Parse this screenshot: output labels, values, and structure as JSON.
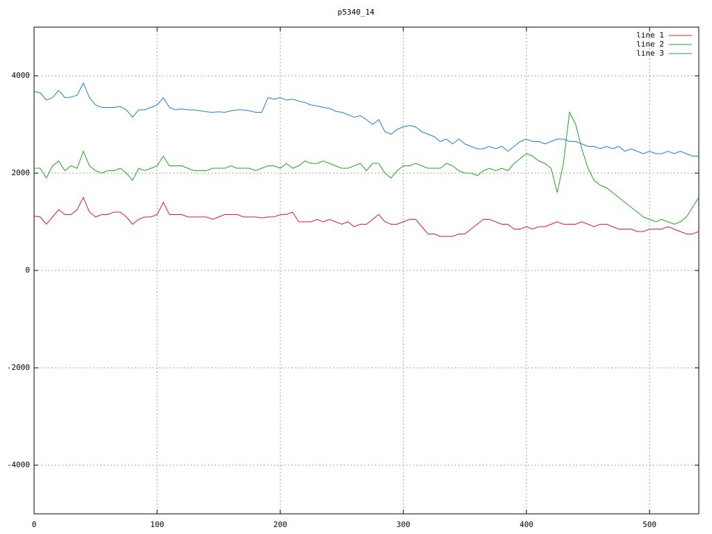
{
  "chart_data": {
    "type": "line",
    "title": "p5340_14",
    "x": [
      0,
      5,
      10,
      15,
      20,
      25,
      30,
      35,
      40,
      45,
      50,
      55,
      60,
      65,
      70,
      75,
      80,
      85,
      90,
      95,
      100,
      105,
      110,
      115,
      120,
      125,
      130,
      135,
      140,
      145,
      150,
      155,
      160,
      165,
      170,
      175,
      180,
      185,
      190,
      195,
      200,
      205,
      210,
      215,
      220,
      225,
      230,
      235,
      240,
      245,
      250,
      255,
      260,
      265,
      270,
      275,
      280,
      285,
      290,
      295,
      300,
      305,
      310,
      315,
      320,
      325,
      330,
      335,
      340,
      345,
      350,
      355,
      360,
      365,
      370,
      375,
      380,
      385,
      390,
      395,
      400,
      405,
      410,
      415,
      420,
      425,
      430,
      435,
      440,
      445,
      450,
      455,
      460,
      465,
      470,
      475,
      480,
      485,
      490,
      495,
      500,
      505,
      510,
      515,
      520,
      525,
      530,
      535,
      540
    ],
    "series": [
      {
        "name": "line 1",
        "color": "#e41a1c",
        "values": [
          1120,
          1100,
          950,
          1100,
          1250,
          1150,
          1150,
          1250,
          1500,
          1200,
          1100,
          1150,
          1150,
          1200,
          1200,
          1100,
          950,
          1050,
          1100,
          1100,
          1150,
          1400,
          1150,
          1150,
          1150,
          1100,
          1100,
          1100,
          1100,
          1050,
          1100,
          1150,
          1150,
          1150,
          1100,
          1100,
          1100,
          1080,
          1100,
          1100,
          1150,
          1150,
          1200,
          1000,
          1000,
          1000,
          1050,
          1000,
          1050,
          1000,
          950,
          1000,
          900,
          950,
          950,
          1050,
          1150,
          1000,
          950,
          950,
          1000,
          1050,
          1050,
          900,
          750,
          750,
          700,
          700,
          700,
          750,
          750,
          850,
          950,
          1050,
          1050,
          1000,
          950,
          950,
          850,
          850,
          900,
          850,
          900,
          900,
          950,
          1000,
          950,
          950,
          950,
          1000,
          950,
          900,
          950,
          950,
          900,
          850,
          850,
          850,
          800,
          800,
          850,
          850,
          850,
          900,
          850,
          800,
          750,
          750,
          800
        ]
      },
      {
        "name": "line 2",
        "color": "#1ca81c",
        "values": [
          2100,
          2100,
          1900,
          2150,
          2250,
          2050,
          2150,
          2100,
          2450,
          2150,
          2050,
          2000,
          2050,
          2050,
          2100,
          2000,
          1850,
          2100,
          2050,
          2100,
          2150,
          2350,
          2150,
          2150,
          2150,
          2100,
          2050,
          2050,
          2050,
          2100,
          2100,
          2100,
          2150,
          2100,
          2100,
          2100,
          2050,
          2100,
          2150,
          2150,
          2100,
          2200,
          2100,
          2150,
          2250,
          2200,
          2200,
          2250,
          2200,
          2150,
          2100,
          2100,
          2150,
          2200,
          2050,
          2200,
          2200,
          2000,
          1900,
          2050,
          2150,
          2150,
          2200,
          2150,
          2100,
          2100,
          2100,
          2200,
          2150,
          2050,
          2000,
          2000,
          1950,
          2050,
          2100,
          2050,
          2100,
          2050,
          2200,
          2300,
          2400,
          2350,
          2250,
          2200,
          2100,
          1600,
          2200,
          3250,
          3000,
          2500,
          2100,
          1850,
          1750,
          1700,
          1600,
          1500,
          1400,
          1300,
          1200,
          1100,
          1050,
          1000,
          1050,
          1000,
          950,
          1000,
          1100,
          1300,
          1500
        ]
      },
      {
        "name": "line 3",
        "color": "#1a7fd4",
        "values": [
          3680,
          3650,
          3500,
          3550,
          3700,
          3550,
          3560,
          3600,
          3850,
          3550,
          3400,
          3350,
          3350,
          3350,
          3370,
          3300,
          3150,
          3300,
          3300,
          3350,
          3400,
          3550,
          3350,
          3300,
          3320,
          3300,
          3300,
          3280,
          3260,
          3250,
          3260,
          3250,
          3280,
          3300,
          3300,
          3280,
          3250,
          3250,
          3550,
          3520,
          3550,
          3500,
          3520,
          3480,
          3450,
          3400,
          3380,
          3350,
          3330,
          3270,
          3250,
          3200,
          3150,
          3180,
          3100,
          3000,
          3100,
          2850,
          2800,
          2900,
          2950,
          2980,
          2950,
          2850,
          2800,
          2750,
          2650,
          2700,
          2600,
          2700,
          2600,
          2550,
          2500,
          2500,
          2550,
          2500,
          2550,
          2450,
          2550,
          2650,
          2700,
          2650,
          2650,
          2600,
          2650,
          2700,
          2700,
          2650,
          2650,
          2600,
          2550,
          2550,
          2500,
          2550,
          2500,
          2550,
          2450,
          2500,
          2450,
          2400,
          2450,
          2400,
          2400,
          2450,
          2400,
          2450,
          2400,
          2350,
          2350
        ]
      }
    ],
    "xlim": [
      0,
      540
    ],
    "ylim": [
      -5000,
      5000
    ],
    "xticks": [
      0,
      100,
      200,
      300,
      400,
      500
    ],
    "yticks": [
      -4000,
      -2000,
      0,
      2000,
      4000
    ],
    "grid": true,
    "legend": "top-right"
  }
}
